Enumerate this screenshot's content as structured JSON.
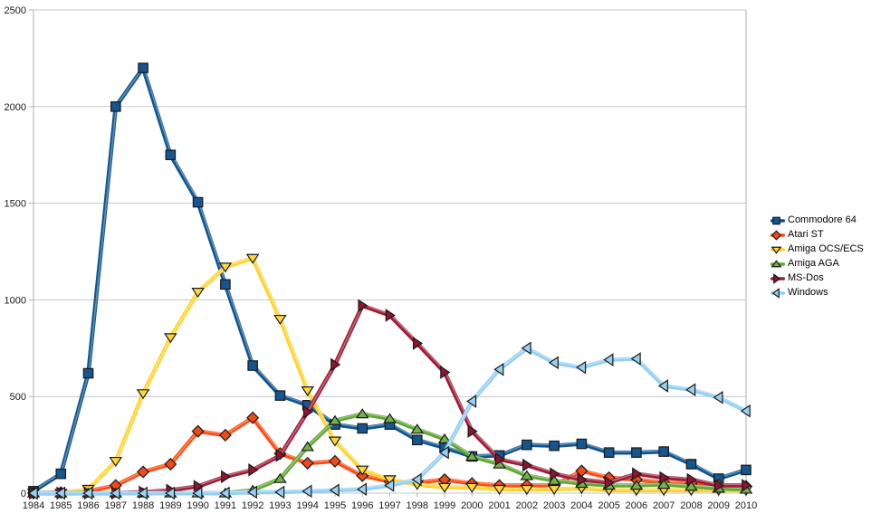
{
  "chart_data": {
    "type": "line",
    "title": "",
    "xlabel": "",
    "ylabel": "",
    "x": [
      1984,
      1985,
      1986,
      1987,
      1988,
      1989,
      1990,
      1991,
      1992,
      1993,
      1994,
      1995,
      1996,
      1997,
      1998,
      1999,
      2000,
      2001,
      2002,
      2003,
      2004,
      2005,
      2006,
      2007,
      2008,
      2009,
      2010
    ],
    "ylim": [
      0,
      2500
    ],
    "yticks": [
      0,
      500,
      1000,
      1500,
      2000,
      2500
    ],
    "grid": "horizontal",
    "legend_position": "right",
    "series": [
      {
        "name": "Commodore 64",
        "marker": "square",
        "color": "#10558f",
        "marker_color": "#15568e",
        "values": [
          10,
          100,
          620,
          2000,
          2200,
          1750,
          1505,
          1080,
          660,
          505,
          455,
          355,
          335,
          355,
          275,
          235,
          190,
          195,
          250,
          245,
          255,
          210,
          210,
          215,
          150,
          75,
          120
        ]
      },
      {
        "name": "Atari ST",
        "marker": "diamond",
        "color": "#ff4a12",
        "marker_color": "#ef4a1a",
        "values": [
          0,
          3,
          10,
          40,
          110,
          150,
          320,
          300,
          390,
          205,
          155,
          165,
          90,
          60,
          55,
          70,
          50,
          40,
          40,
          40,
          115,
          80,
          70,
          55,
          50,
          40,
          35
        ]
      },
      {
        "name": "Amiga OCS/ECS",
        "marker": "triangle-down",
        "color": "#ffd32e",
        "marker_color": "#ffd83f",
        "values": [
          0,
          0,
          20,
          165,
          515,
          805,
          1040,
          1170,
          1215,
          900,
          530,
          270,
          120,
          70,
          45,
          30,
          30,
          20,
          20,
          20,
          25,
          15,
          15,
          15,
          15,
          15,
          15
        ]
      },
      {
        "name": "Amiga AGA",
        "marker": "triangle-up",
        "color": "#62a637",
        "marker_color": "#74b14a",
        "values": [
          0,
          0,
          0,
          0,
          0,
          0,
          0,
          0,
          15,
          75,
          240,
          375,
          410,
          385,
          330,
          280,
          190,
          150,
          90,
          65,
          50,
          40,
          40,
          45,
          35,
          25,
          20
        ]
      },
      {
        "name": "MS-Dos",
        "marker": "triangle-right",
        "color": "#9e1c38",
        "marker_color": "#8e1430",
        "values": [
          0,
          0,
          0,
          0,
          5,
          15,
          35,
          85,
          120,
          195,
          420,
          665,
          970,
          920,
          775,
          625,
          320,
          175,
          145,
          100,
          70,
          55,
          100,
          80,
          70,
          40,
          40
        ]
      },
      {
        "name": "Windows",
        "marker": "triangle-left",
        "color": "#93cef4",
        "marker_color": "#99d1f2",
        "values": [
          0,
          0,
          0,
          0,
          0,
          0,
          0,
          0,
          5,
          5,
          10,
          15,
          20,
          40,
          70,
          210,
          475,
          640,
          750,
          675,
          650,
          690,
          695,
          555,
          535,
          495,
          425
        ]
      }
    ]
  },
  "colors": {
    "background": "#ffffff",
    "gridline": "#c6c6c6",
    "axis_line": "#b0b0b0",
    "axis_text": "#1a1a1a",
    "marker_outline": "#1a1a1a"
  }
}
